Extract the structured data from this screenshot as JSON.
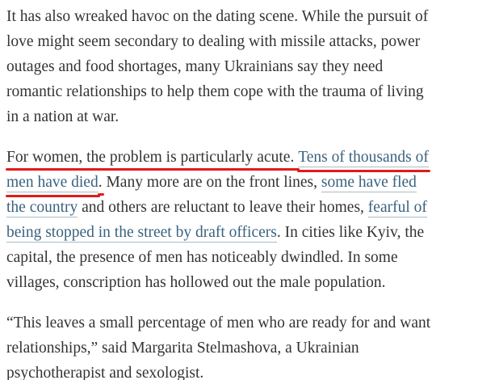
{
  "colors": {
    "background": "#ffffff",
    "body_text": "#333333",
    "link": "#3a627f",
    "link_underline": "#a7bcca",
    "annotation_red": "#e11b1b"
  },
  "article": {
    "paragraphs": [
      {
        "lines": [
          {
            "runs": [
              {
                "text": "It has also wreaked havoc on the dating scene. While the pursuit of",
                "link": false,
                "red": false
              }
            ]
          },
          {
            "runs": [
              {
                "text": "love might seem secondary to dealing with missile attacks, power",
                "link": false,
                "red": false
              }
            ]
          },
          {
            "runs": [
              {
                "text": "outages and food shortages, many Ukrainians say they need",
                "link": false,
                "red": false
              }
            ]
          },
          {
            "runs": [
              {
                "text": "romantic relationships to help them cope with the trauma of living",
                "link": false,
                "red": false
              }
            ]
          },
          {
            "runs": [
              {
                "text": "in a nation at war.",
                "link": false,
                "red": false
              }
            ]
          }
        ]
      },
      {
        "lines": [
          {
            "runs": [
              {
                "text": "For women, the problem is particularly acute. ",
                "link": false,
                "red": true
              },
              {
                "text": "Tens of thousands of",
                "link": true,
                "red": true
              }
            ]
          },
          {
            "runs": [
              {
                "text": "men have died",
                "link": true,
                "red": true
              },
              {
                "text": ".",
                "link": false,
                "red": true
              },
              {
                "text": " Many more are on the front lines, ",
                "link": false,
                "red": false
              },
              {
                "text": "some have fled",
                "link": true,
                "red": false
              }
            ]
          },
          {
            "runs": [
              {
                "text": "the country",
                "link": true,
                "red": false
              },
              {
                "text": " and others are reluctant to leave their homes, ",
                "link": false,
                "red": false
              },
              {
                "text": "fearful of",
                "link": true,
                "red": false
              }
            ]
          },
          {
            "runs": [
              {
                "text": "being stopped in the street by draft officers",
                "link": true,
                "red": false
              },
              {
                "text": ". In cities like Kyiv, the",
                "link": false,
                "red": false
              }
            ]
          },
          {
            "runs": [
              {
                "text": "capital, the presence of men has noticeably dwindled. In some",
                "link": false,
                "red": false
              }
            ]
          },
          {
            "runs": [
              {
                "text": "villages, conscription has hollowed out the male population.",
                "link": false,
                "red": false
              }
            ]
          }
        ]
      },
      {
        "lines": [
          {
            "runs": [
              {
                "text": "“This leaves a small percentage of men who are ready for and want",
                "link": false,
                "red": false
              }
            ]
          },
          {
            "runs": [
              {
                "text": "relationships,” said Margarita Stelmashova, a Ukrainian",
                "link": false,
                "red": false
              }
            ]
          },
          {
            "runs": [
              {
                "text": "psychotherapist and sexologist.",
                "link": false,
                "red": false
              }
            ]
          }
        ]
      }
    ]
  }
}
